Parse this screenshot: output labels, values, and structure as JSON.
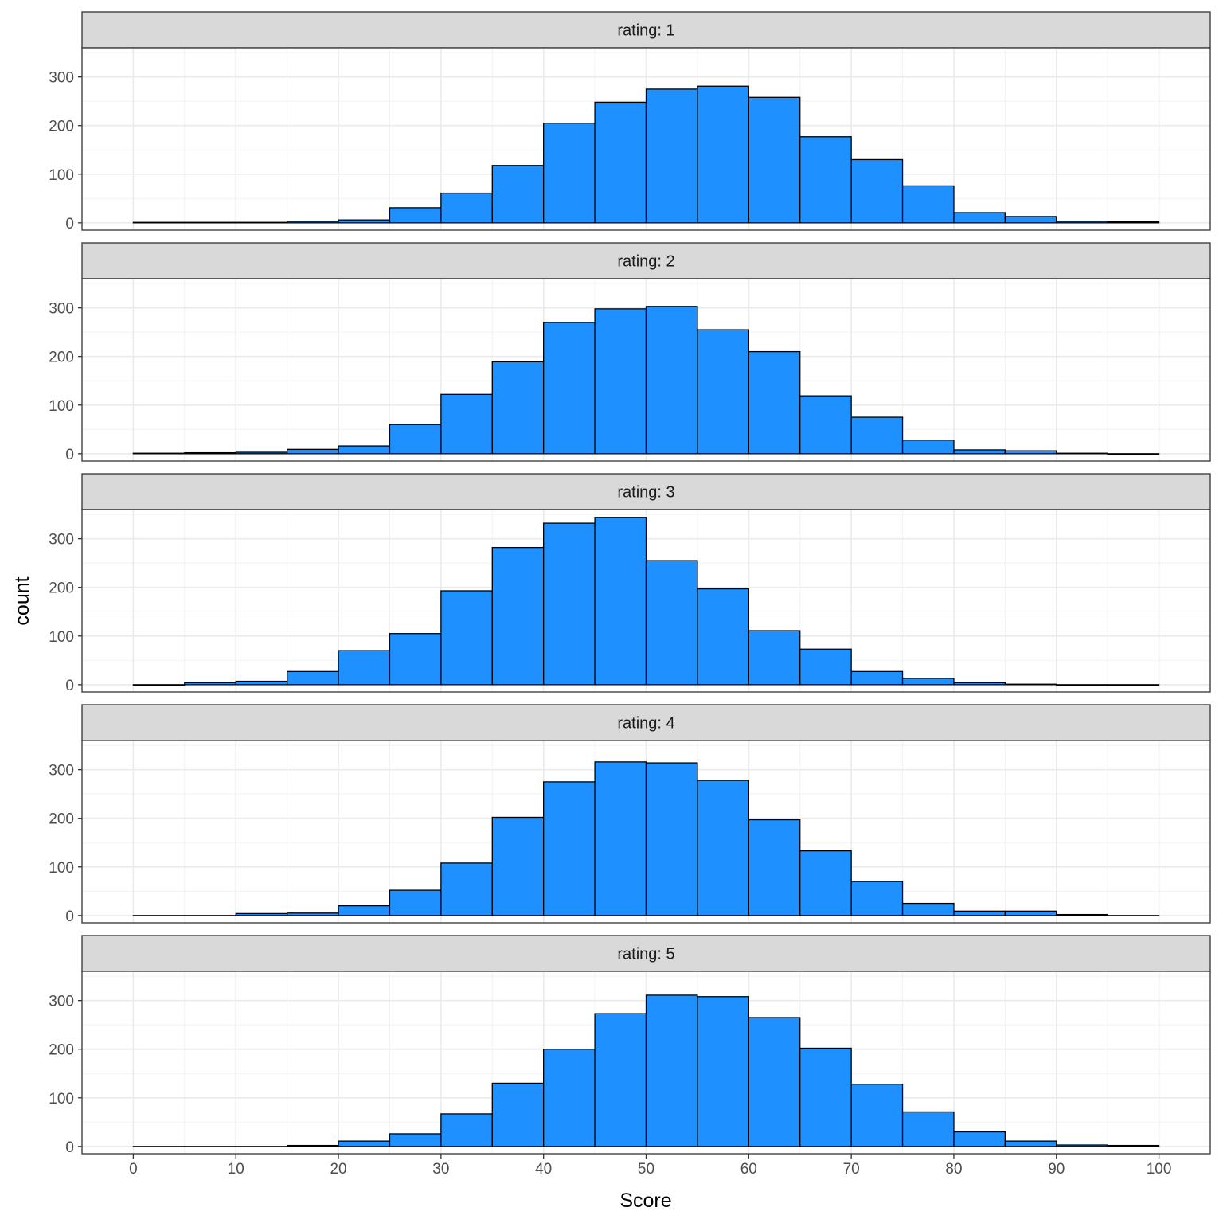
{
  "chart_data": {
    "type": "bar",
    "xlabel": "Score",
    "ylabel": "count",
    "xlim": [
      -5,
      105
    ],
    "ylim": [
      -15,
      360
    ],
    "x_ticks": [
      "0",
      "10",
      "20",
      "30",
      "40",
      "50",
      "60",
      "70",
      "80",
      "90",
      "100"
    ],
    "y_ticks": [
      "0",
      "100",
      "200",
      "300"
    ],
    "bin_edges": [
      0,
      5,
      10,
      15,
      20,
      25,
      30,
      35,
      40,
      45,
      50,
      55,
      60,
      65,
      70,
      75,
      80,
      85,
      90,
      95,
      100
    ],
    "grid": true,
    "bar_fill": "#1e90ff",
    "bar_stroke": "#000000",
    "strip_fill": "#d9d9d9",
    "panels": [
      {
        "strip": "rating: 1",
        "values": [
          1,
          1,
          1,
          3,
          6,
          31,
          61,
          118,
          205,
          248,
          275,
          281,
          258,
          177,
          130,
          76,
          21,
          13,
          3,
          2
        ]
      },
      {
        "strip": "rating: 2",
        "values": [
          1,
          2,
          3,
          9,
          16,
          60,
          122,
          189,
          270,
          298,
          303,
          255,
          210,
          119,
          75,
          28,
          8,
          6,
          1,
          0
        ]
      },
      {
        "strip": "rating: 3",
        "values": [
          0,
          4,
          7,
          27,
          70,
          105,
          193,
          282,
          332,
          344,
          255,
          197,
          111,
          73,
          27,
          13,
          4,
          1,
          0,
          0
        ]
      },
      {
        "strip": "rating: 4",
        "values": [
          0,
          0,
          4,
          5,
          20,
          52,
          108,
          202,
          275,
          316,
          314,
          278,
          197,
          133,
          70,
          25,
          9,
          9,
          2,
          0
        ]
      },
      {
        "strip": "rating: 5",
        "values": [
          0,
          0,
          0,
          2,
          11,
          26,
          67,
          130,
          200,
          273,
          311,
          308,
          265,
          202,
          128,
          71,
          30,
          11,
          3,
          2
        ]
      }
    ]
  }
}
